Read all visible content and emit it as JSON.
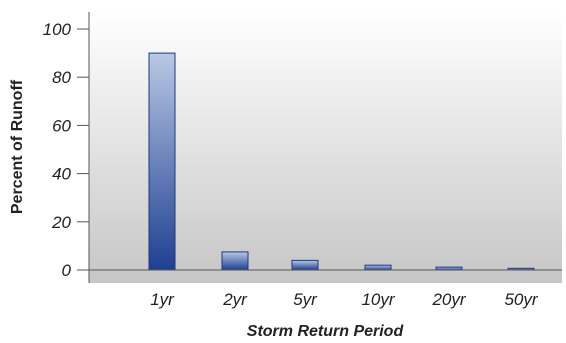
{
  "chart_data": {
    "type": "bar",
    "title": "",
    "xlabel": "Storm Return Period",
    "ylabel": "Percent of Runoff",
    "categories": [
      "1yr",
      "2yr",
      "5yr",
      "10yr",
      "20yr",
      "50yr"
    ],
    "values": [
      90,
      7.5,
      4,
      2,
      1.2,
      0.7
    ],
    "ylim": [
      0,
      110
    ],
    "yticks": [
      0,
      20,
      40,
      60,
      80,
      100
    ],
    "grid": false,
    "legend": "none",
    "colors": {
      "bar_top": "#b9c8e4",
      "bar_bottom": "#1f3f91",
      "bar_stroke": "#1c3780",
      "plot_bg_top": "#ffffff",
      "plot_bg_bottom": "#c6c6c6"
    }
  }
}
